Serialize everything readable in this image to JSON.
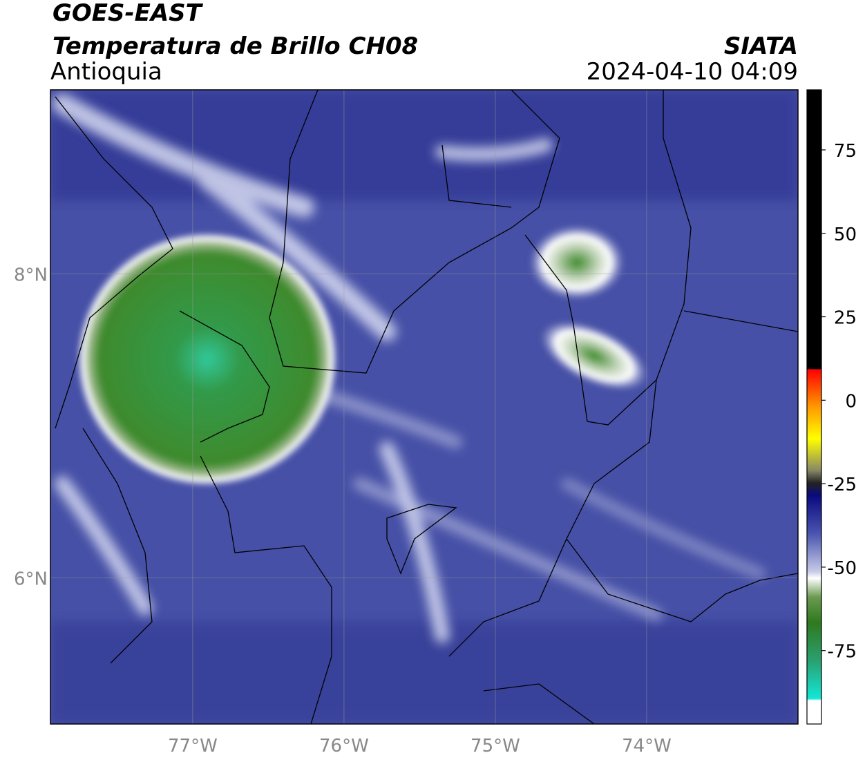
{
  "header": {
    "title": "GOES-EAST",
    "subtitle": "Temperatura de Brillo CH08",
    "region": "Antioquia",
    "source": "SIATA",
    "datetime": "2024-04-10 04:09"
  },
  "map": {
    "xlim": [
      -77.94,
      -73.0
    ],
    "ylim": [
      5.04,
      9.21
    ],
    "xticks": [
      {
        "value": -77,
        "label": "77°W"
      },
      {
        "value": -76,
        "label": "76°W"
      },
      {
        "value": -75,
        "label": "75°W"
      },
      {
        "value": -74,
        "label": "74°W"
      }
    ],
    "yticks": [
      {
        "value": 8,
        "label": "8°N"
      },
      {
        "value": 6,
        "label": "6°N"
      }
    ]
  },
  "colorbar": {
    "lim": [
      -97,
      93
    ],
    "ticks": [
      75,
      50,
      25,
      0,
      -25,
      -50,
      -75
    ]
  }
}
